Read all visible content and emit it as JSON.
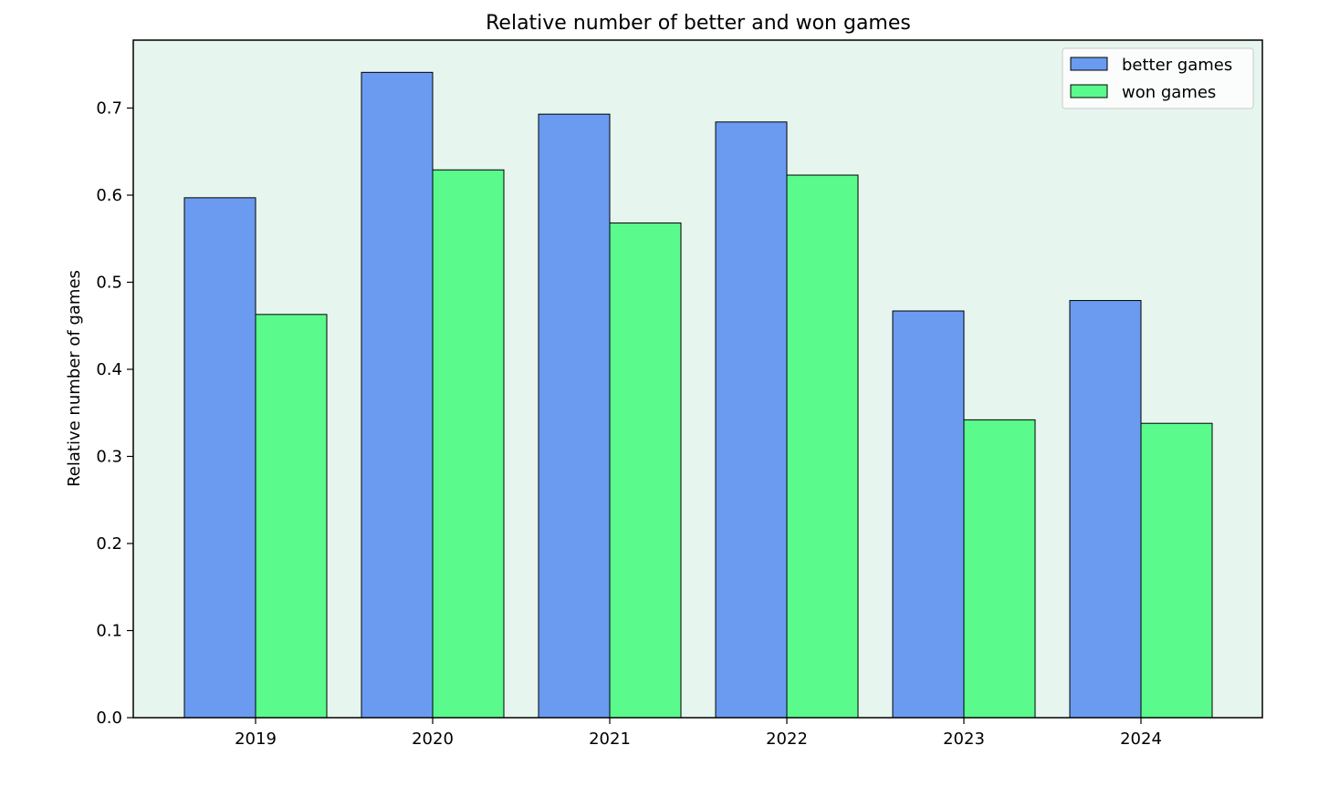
{
  "colors": {
    "plot_background": "#e6f5ee",
    "better": "#6a9bf0",
    "won": "#5afa8c",
    "bar_edge": "#000000"
  },
  "chart_data": {
    "type": "bar",
    "title": "Relative number of better and won games",
    "xlabel": "",
    "ylabel": "Relative number of games",
    "categories": [
      "2019",
      "2020",
      "2021",
      "2022",
      "2023",
      "2024"
    ],
    "series": [
      {
        "name": "better games",
        "values": [
          0.597,
          0.741,
          0.693,
          0.684,
          0.467,
          0.479
        ]
      },
      {
        "name": "won games",
        "values": [
          0.463,
          0.629,
          0.568,
          0.623,
          0.342,
          0.338
        ]
      }
    ],
    "ylim": [
      0,
      0.778
    ],
    "yticks": [
      "0.0",
      "0.1",
      "0.2",
      "0.3",
      "0.4",
      "0.5",
      "0.6",
      "0.7"
    ],
    "grid": false,
    "legend": "top-right"
  }
}
